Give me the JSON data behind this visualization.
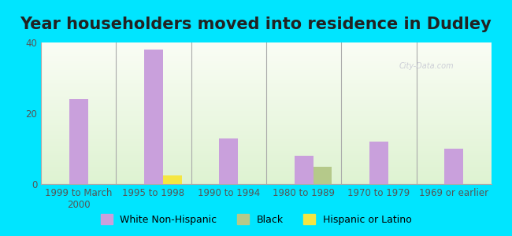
{
  "title": "Year householders moved into residence in Dudley",
  "categories": [
    "1999 to March\n2000",
    "1995 to 1998",
    "1990 to 1994",
    "1980 to 1989",
    "1970 to 1979",
    "1969 or earlier"
  ],
  "white_non_hispanic": [
    24,
    38,
    13,
    8,
    12,
    10
  ],
  "black_values": [
    0,
    0,
    0,
    5,
    0,
    0
  ],
  "hispanic_or_latino": [
    0,
    2.5,
    0,
    0,
    0,
    0
  ],
  "white_color": "#c9a0dc",
  "black_color": "#b5c98a",
  "hispanic_color": "#f5e642",
  "ylim": [
    0,
    40
  ],
  "yticks": [
    0,
    20,
    40
  ],
  "background_outer": "#00e5ff",
  "bar_width": 0.25,
  "title_fontsize": 15,
  "tick_fontsize": 8.5,
  "legend_fontsize": 9,
  "legend_labels": [
    "White Non-Hispanic",
    "Black",
    "Hispanic or Latino"
  ]
}
